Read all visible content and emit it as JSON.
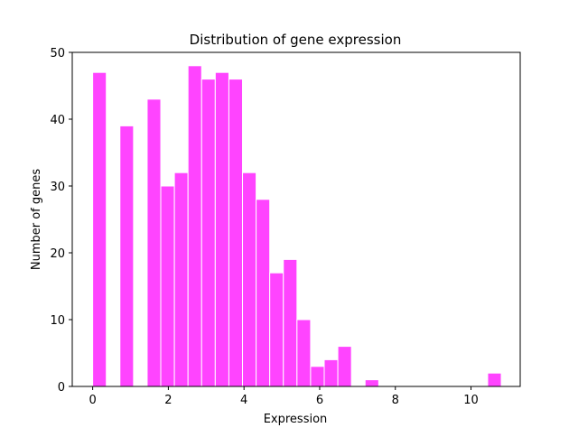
{
  "chart_data": {
    "type": "bar",
    "subtype": "histogram",
    "title": "Distribution of gene expression",
    "xlabel": "Expression",
    "ylabel": "Number of genes",
    "xlim": [
      -0.54,
      11.3
    ],
    "ylim": [
      0,
      50
    ],
    "xticks": [
      0,
      2,
      4,
      6,
      8,
      10
    ],
    "yticks": [
      0,
      10,
      20,
      30,
      40,
      50
    ],
    "grid": false,
    "legend": "none",
    "bar_color": "#ff44ff",
    "bar_edge_color": "#ffffff",
    "bin_width": 0.36,
    "bins": [
      {
        "x": 0.0,
        "count": 47
      },
      {
        "x": 0.36,
        "count": 0
      },
      {
        "x": 0.72,
        "count": 39
      },
      {
        "x": 1.08,
        "count": 0
      },
      {
        "x": 1.44,
        "count": 43
      },
      {
        "x": 1.8,
        "count": 30
      },
      {
        "x": 2.16,
        "count": 32
      },
      {
        "x": 2.52,
        "count": 48
      },
      {
        "x": 2.88,
        "count": 46
      },
      {
        "x": 3.24,
        "count": 47
      },
      {
        "x": 3.6,
        "count": 46
      },
      {
        "x": 3.96,
        "count": 32
      },
      {
        "x": 4.32,
        "count": 28
      },
      {
        "x": 4.68,
        "count": 17
      },
      {
        "x": 5.04,
        "count": 19
      },
      {
        "x": 5.4,
        "count": 10
      },
      {
        "x": 5.76,
        "count": 3
      },
      {
        "x": 6.12,
        "count": 4
      },
      {
        "x": 6.48,
        "count": 6
      },
      {
        "x": 6.84,
        "count": 0
      },
      {
        "x": 7.2,
        "count": 1
      },
      {
        "x": 7.56,
        "count": 0
      },
      {
        "x": 7.92,
        "count": 0
      },
      {
        "x": 8.28,
        "count": 0
      },
      {
        "x": 8.64,
        "count": 0
      },
      {
        "x": 9.0,
        "count": 0
      },
      {
        "x": 9.36,
        "count": 0
      },
      {
        "x": 9.72,
        "count": 0
      },
      {
        "x": 10.08,
        "count": 0
      },
      {
        "x": 10.44,
        "count": 2
      }
    ]
  }
}
